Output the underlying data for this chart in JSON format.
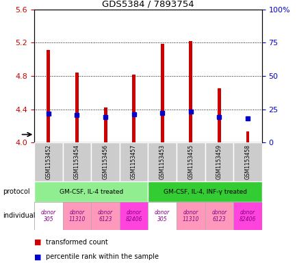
{
  "title": "GDS5384 / 7893754",
  "samples": [
    "GSM1153452",
    "GSM1153454",
    "GSM1153456",
    "GSM1153457",
    "GSM1153453",
    "GSM1153455",
    "GSM1153459",
    "GSM1153458"
  ],
  "red_values": [
    5.11,
    4.84,
    4.42,
    4.82,
    5.19,
    5.22,
    4.65,
    4.13
  ],
  "blue_values": [
    4.345,
    4.33,
    4.31,
    4.34,
    4.36,
    4.37,
    4.31,
    4.29
  ],
  "ylim_left": [
    4.0,
    5.6
  ],
  "ylim_right": [
    0,
    100
  ],
  "left_ticks": [
    4.0,
    4.4,
    4.8,
    5.2,
    5.6
  ],
  "right_ticks": [
    0,
    25,
    50,
    75,
    100
  ],
  "right_tick_labels": [
    "0",
    "25",
    "50",
    "75",
    "100%"
  ],
  "protocols": [
    {
      "label": "GM-CSF, IL-4 treated",
      "start": 0,
      "end": 4,
      "color": "#90EE90"
    },
    {
      "label": "GM-CSF, IL-4, INF-γ treated",
      "start": 4,
      "end": 8,
      "color": "#33CC33"
    }
  ],
  "individuals": [
    "donor\n305",
    "donor\n11310",
    "donor\n6123",
    "donor\n82406",
    "donor\n305",
    "donor\n11310",
    "donor\n6123",
    "donor\n82406"
  ],
  "individual_colors": [
    "#FFFFFF",
    "#FF99BB",
    "#FF99BB",
    "#FF44DD",
    "#FFFFFF",
    "#FF99BB",
    "#FF99BB",
    "#FF44DD"
  ],
  "bar_color": "#CC0000",
  "blue_color": "#0000CC",
  "base_value": 4.0,
  "left_axis_color": "#CC0000",
  "right_axis_color": "#0000CC",
  "bar_width": 0.12,
  "blue_marker_size": 4,
  "sample_label_color": "#CCCCCC",
  "fig_width": 4.35,
  "fig_height": 3.93,
  "dpi": 100
}
